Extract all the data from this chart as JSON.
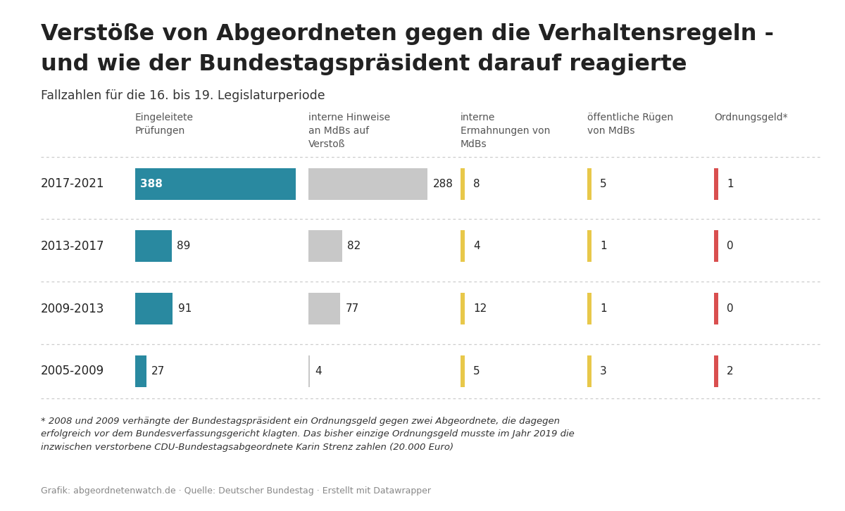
{
  "title_line1": "Verstöße von Abgeordneten gegen die Verhaltensregeln -",
  "title_line2": "und wie der Bundestagspräsident darauf reagierte",
  "subtitle": "Fallzahlen für die 16. bis 19. Legislaturperiode",
  "col_headers": [
    "Eingeleitete\nPrüfungen",
    "interne Hinweise\nan MdBs auf\nVerstoß",
    "interne\nErmahnungen von\nMdBs",
    "öffentliche Rügen\nvon MdBs",
    "Ordnungsgeld*"
  ],
  "rows": [
    {
      "label": "2017-2021",
      "values": [
        388,
        288,
        8,
        5,
        1
      ]
    },
    {
      "label": "2013-2017",
      "values": [
        89,
        82,
        4,
        1,
        0
      ]
    },
    {
      "label": "2009-2013",
      "values": [
        91,
        77,
        12,
        1,
        0
      ]
    },
    {
      "label": "2005-2009",
      "values": [
        27,
        4,
        5,
        3,
        2
      ]
    }
  ],
  "col1_color": "#2989a0",
  "col2_color": "#c8c8c8",
  "col3_color": "#e8c84a",
  "col4_color": "#e8c84a",
  "col5_color": "#d94f4f",
  "footnote": "* 2008 und 2009 verhängte der Bundestagspräsident ein Ordnungsgeld gegen zwei Abgeordnete, die dagegen\nerfolgreich vor dem Bundesverfassungsgericht klagten. Das bisher einzige Ordnungsgeld musste im Jahr 2019 die\ninzwischen verstorbene CDU-Bundestagsabgeordnete Karin Strenz zahlen (20.000 Euro)",
  "source": "Grafik: abgeordnetenwatch.de · Quelle: Deutscher Bundestag · Erstellt mit Datawrapper",
  "bg_color": "#ffffff",
  "text_color": "#222222",
  "max_val": 388
}
